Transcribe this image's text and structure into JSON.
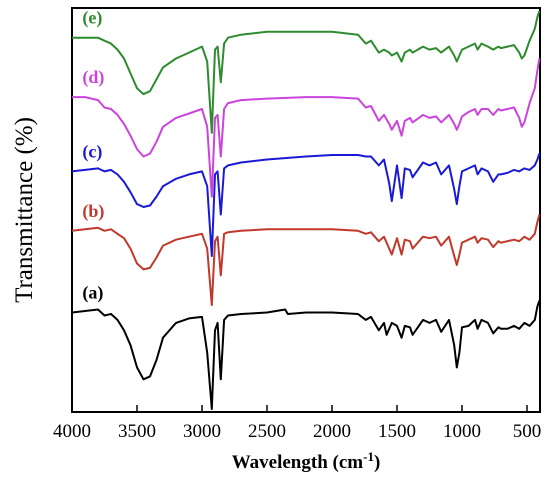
{
  "chart_data": {
    "type": "line",
    "xlabel": "Wavelength (cm",
    "xlabel_sup": "-1",
    "xlabel_end": ")",
    "ylabel": "Transmittance (%)",
    "xlim": [
      4000,
      400
    ],
    "x_reversed": true,
    "y_ticks_shown": false,
    "grid": false,
    "xticks": [
      4000,
      3500,
      3000,
      2500,
      2000,
      1500,
      1000,
      500
    ],
    "xtick_labels": [
      "4000",
      "3500",
      "3000",
      "2500",
      "2000",
      "1500",
      "1000",
      "500"
    ],
    "series": [
      {
        "name": "(a)",
        "color": "#000000",
        "x": [
          4000,
          3900,
          3800,
          3750,
          3700,
          3650,
          3600,
          3550,
          3500,
          3450,
          3400,
          3350,
          3300,
          3200,
          3100,
          3000,
          2960,
          2925,
          2900,
          2880,
          2855,
          2830,
          2800,
          2700,
          2500,
          2360,
          2340,
          2200,
          2000,
          1800,
          1740,
          1700,
          1640,
          1600,
          1580,
          1540,
          1500,
          1465,
          1440,
          1400,
          1380,
          1300,
          1250,
          1200,
          1160,
          1100,
          1060,
          1040,
          1020,
          1000,
          950,
          900,
          880,
          850,
          800,
          760,
          720,
          700,
          650,
          600,
          560,
          520,
          480,
          440,
          420,
          405
        ],
        "y": [
          0.67,
          0.68,
          0.69,
          0.65,
          0.66,
          0.62,
          0.55,
          0.45,
          0.3,
          0.22,
          0.24,
          0.35,
          0.5,
          0.6,
          0.63,
          0.64,
          0.4,
          0.02,
          0.55,
          0.6,
          0.22,
          0.62,
          0.65,
          0.66,
          0.67,
          0.69,
          0.66,
          0.67,
          0.67,
          0.66,
          0.62,
          0.64,
          0.55,
          0.6,
          0.52,
          0.6,
          0.58,
          0.5,
          0.58,
          0.57,
          0.52,
          0.62,
          0.6,
          0.62,
          0.54,
          0.62,
          0.45,
          0.3,
          0.4,
          0.57,
          0.58,
          0.62,
          0.56,
          0.62,
          0.6,
          0.53,
          0.57,
          0.56,
          0.56,
          0.58,
          0.56,
          0.6,
          0.58,
          0.62,
          0.71,
          0.75
        ]
      },
      {
        "name": "(b)",
        "color": "#c0392b",
        "x": [
          4000,
          3900,
          3800,
          3750,
          3700,
          3650,
          3600,
          3550,
          3500,
          3450,
          3400,
          3350,
          3300,
          3200,
          3100,
          3000,
          2960,
          2925,
          2900,
          2880,
          2855,
          2830,
          2800,
          2700,
          2500,
          2200,
          2000,
          1800,
          1740,
          1700,
          1640,
          1600,
          1560,
          1540,
          1500,
          1465,
          1440,
          1400,
          1380,
          1300,
          1250,
          1200,
          1160,
          1100,
          1060,
          1040,
          1020,
          1000,
          950,
          900,
          880,
          850,
          800,
          760,
          720,
          700,
          650,
          600,
          560,
          520,
          480,
          440,
          420,
          405
        ],
        "y": [
          1.22,
          1.23,
          1.24,
          1.22,
          1.23,
          1.2,
          1.17,
          1.1,
          1.0,
          0.96,
          0.97,
          1.04,
          1.12,
          1.16,
          1.18,
          1.2,
          1.1,
          0.72,
          1.15,
          1.18,
          0.92,
          1.2,
          1.21,
          1.22,
          1.23,
          1.23,
          1.23,
          1.22,
          1.2,
          1.21,
          1.15,
          1.18,
          1.1,
          1.06,
          1.17,
          1.06,
          1.16,
          1.15,
          1.1,
          1.18,
          1.17,
          1.18,
          1.12,
          1.18,
          1.05,
          0.99,
          1.06,
          1.14,
          1.16,
          1.18,
          1.14,
          1.17,
          1.16,
          1.11,
          1.15,
          1.14,
          1.15,
          1.16,
          1.15,
          1.18,
          1.16,
          1.2,
          1.28,
          1.33
        ]
      },
      {
        "name": "(c)",
        "color": "#1a1ad6",
        "x": [
          4000,
          3900,
          3800,
          3750,
          3700,
          3650,
          3600,
          3550,
          3500,
          3450,
          3400,
          3350,
          3300,
          3200,
          3100,
          3000,
          2960,
          2925,
          2900,
          2880,
          2855,
          2830,
          2800,
          2700,
          2500,
          2200,
          2000,
          1800,
          1740,
          1700,
          1640,
          1600,
          1560,
          1540,
          1500,
          1465,
          1440,
          1400,
          1380,
          1300,
          1250,
          1200,
          1160,
          1100,
          1060,
          1040,
          1020,
          1000,
          950,
          900,
          880,
          850,
          800,
          760,
          720,
          700,
          650,
          600,
          560,
          520,
          480,
          440,
          420,
          405
        ],
        "y": [
          1.62,
          1.63,
          1.64,
          1.62,
          1.63,
          1.6,
          1.55,
          1.48,
          1.4,
          1.38,
          1.39,
          1.45,
          1.52,
          1.57,
          1.6,
          1.62,
          1.52,
          1.05,
          1.6,
          1.62,
          1.33,
          1.64,
          1.66,
          1.68,
          1.7,
          1.72,
          1.73,
          1.73,
          1.72,
          1.72,
          1.66,
          1.7,
          1.54,
          1.42,
          1.66,
          1.44,
          1.64,
          1.63,
          1.58,
          1.68,
          1.66,
          1.68,
          1.6,
          1.66,
          1.5,
          1.4,
          1.52,
          1.62,
          1.64,
          1.66,
          1.6,
          1.64,
          1.62,
          1.55,
          1.6,
          1.6,
          1.61,
          1.63,
          1.62,
          1.64,
          1.63,
          1.66,
          1.7,
          1.74
        ]
      },
      {
        "name": "(d)",
        "color": "#cc44dd",
        "x": [
          4000,
          3900,
          3800,
          3750,
          3700,
          3650,
          3600,
          3550,
          3500,
          3450,
          3400,
          3350,
          3300,
          3200,
          3100,
          3000,
          2960,
          2925,
          2900,
          2880,
          2855,
          2830,
          2800,
          2700,
          2500,
          2200,
          2000,
          1800,
          1740,
          1700,
          1640,
          1600,
          1560,
          1540,
          1500,
          1465,
          1440,
          1400,
          1380,
          1300,
          1250,
          1200,
          1160,
          1100,
          1060,
          1040,
          1020,
          1000,
          950,
          900,
          880,
          850,
          800,
          760,
          720,
          700,
          650,
          600,
          560,
          540,
          520,
          480,
          440,
          420,
          405
        ],
        "y": [
          2.12,
          2.12,
          2.1,
          2.05,
          2.04,
          2.0,
          1.94,
          1.86,
          1.77,
          1.72,
          1.74,
          1.82,
          1.92,
          1.98,
          2.01,
          2.04,
          1.92,
          1.45,
          1.98,
          2.0,
          1.72,
          2.04,
          2.08,
          2.1,
          2.11,
          2.12,
          2.12,
          2.11,
          2.05,
          2.06,
          1.96,
          2.0,
          1.94,
          1.9,
          1.96,
          1.86,
          1.96,
          1.98,
          1.95,
          2.0,
          1.98,
          1.99,
          1.95,
          2.0,
          1.94,
          1.9,
          1.94,
          1.99,
          2.02,
          2.04,
          2.0,
          2.04,
          2.04,
          2.0,
          2.04,
          2.03,
          2.04,
          2.05,
          1.98,
          1.92,
          1.95,
          2.08,
          2.18,
          2.3,
          2.38
        ]
      },
      {
        "name": "(e)",
        "color": "#2e8b2e",
        "x": [
          4000,
          3900,
          3800,
          3750,
          3700,
          3650,
          3600,
          3550,
          3500,
          3450,
          3400,
          3350,
          3300,
          3200,
          3100,
          3000,
          2960,
          2925,
          2900,
          2880,
          2855,
          2830,
          2800,
          2700,
          2500,
          2200,
          2000,
          1800,
          1740,
          1700,
          1640,
          1600,
          1560,
          1540,
          1500,
          1465,
          1440,
          1400,
          1380,
          1300,
          1250,
          1200,
          1160,
          1100,
          1060,
          1040,
          1020,
          1000,
          950,
          900,
          880,
          850,
          800,
          760,
          720,
          700,
          650,
          600,
          560,
          540,
          520,
          480,
          440,
          420,
          405
        ],
        "y": [
          2.52,
          2.52,
          2.52,
          2.5,
          2.48,
          2.44,
          2.38,
          2.28,
          2.18,
          2.14,
          2.16,
          2.24,
          2.32,
          2.38,
          2.42,
          2.46,
          2.36,
          1.88,
          2.44,
          2.46,
          2.22,
          2.48,
          2.52,
          2.54,
          2.56,
          2.56,
          2.56,
          2.54,
          2.48,
          2.5,
          2.42,
          2.44,
          2.42,
          2.4,
          2.42,
          2.36,
          2.42,
          2.44,
          2.42,
          2.46,
          2.44,
          2.45,
          2.42,
          2.46,
          2.4,
          2.36,
          2.4,
          2.44,
          2.46,
          2.48,
          2.44,
          2.48,
          2.46,
          2.44,
          2.46,
          2.45,
          2.46,
          2.47,
          2.42,
          2.38,
          2.4,
          2.5,
          2.58,
          2.66,
          2.7
        ]
      }
    ],
    "ylim": [
      0.0,
      2.72
    ],
    "label_positions": "left, above each trace"
  }
}
